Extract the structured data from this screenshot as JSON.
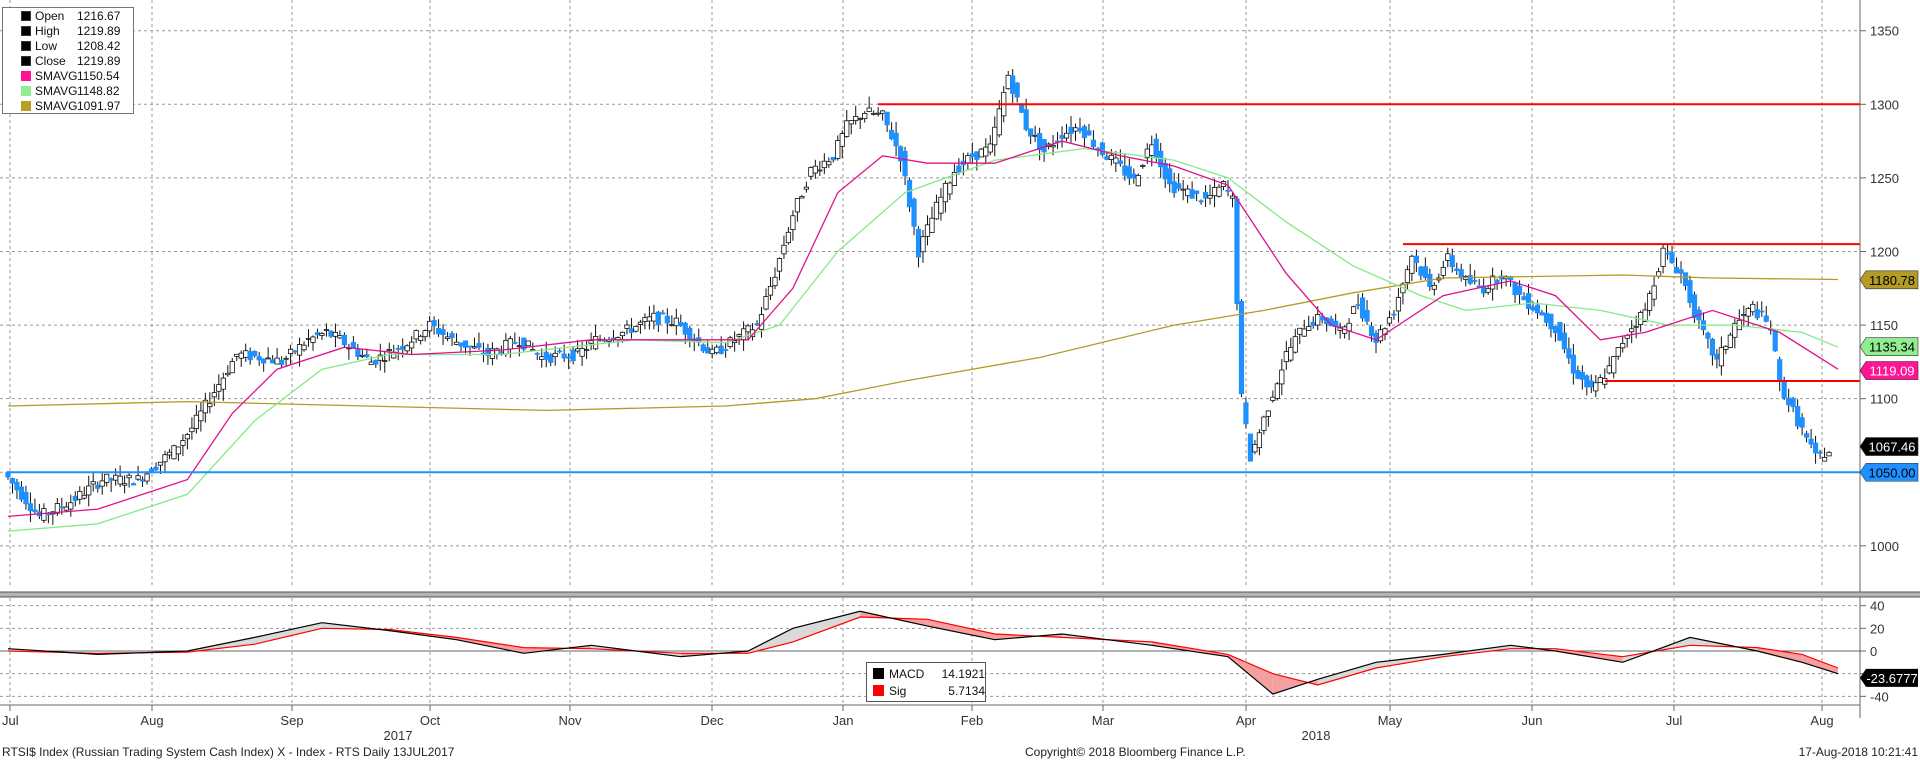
{
  "legend": {
    "rows": [
      {
        "name": "Open",
        "value": "1216.67",
        "color": "#000000"
      },
      {
        "name": "High",
        "value": "1219.89",
        "color": "#000000"
      },
      {
        "name": "Low",
        "value": "1208.42",
        "color": "#000000"
      },
      {
        "name": "Close",
        "value": "1219.89",
        "color": "#000000"
      },
      {
        "name": "SMAVG",
        "value": "1150.54",
        "color": "#ff1493"
      },
      {
        "name": "SMAVG",
        "value": "1148.82",
        "color": "#90ee90"
      },
      {
        "name": "SMAVG",
        "value": "1091.97",
        "color": "#b5a02a"
      }
    ]
  },
  "macd_legend": {
    "rows": [
      {
        "name": "MACD",
        "value": "14.1921",
        "color": "#000000"
      },
      {
        "name": "Sig",
        "value": "5.7134",
        "color": "#ff0000"
      }
    ]
  },
  "footer": {
    "left": "RTSI$ Index (Russian Trading System Cash Index) X - Index - RTS  Daily 13JUL2017",
    "center": "Copyright© 2018 Bloomberg Finance L.P.",
    "right": "17-Aug-2018 10:21:41"
  },
  "chart_data": [
    {
      "type": "candlestick",
      "title": "",
      "x_axis": {
        "months": [
          "Jul",
          "Aug",
          "Sep",
          "Oct",
          "Nov",
          "Dec",
          "Jan",
          "Feb",
          "Mar",
          "Apr",
          "May",
          "Jun",
          "Jul",
          "Aug"
        ],
        "years": [
          "2017",
          "2018"
        ]
      },
      "y_axis": {
        "ticks": [
          1000,
          1050,
          1100,
          1150,
          1200,
          1250,
          1300,
          1350
        ],
        "range": [
          970,
          1360
        ],
        "labeled_ticks": [
          "1000",
          "1100",
          "1150",
          "1200",
          "1250",
          "1300",
          "1350"
        ]
      },
      "grid": true,
      "legend_placement": "top-left",
      "price_path": [
        [
          0,
          1050
        ],
        [
          8,
          1020
        ],
        [
          15,
          1030
        ],
        [
          22,
          1045
        ],
        [
          30,
          1045
        ],
        [
          38,
          1065
        ],
        [
          42,
          1080
        ],
        [
          48,
          1110
        ],
        [
          52,
          1130
        ],
        [
          58,
          1128
        ],
        [
          62,
          1125
        ],
        [
          68,
          1140
        ],
        [
          72,
          1145
        ],
        [
          75,
          1140
        ],
        [
          82,
          1125
        ],
        [
          90,
          1138
        ],
        [
          95,
          1150
        ],
        [
          100,
          1140
        ],
        [
          108,
          1130
        ],
        [
          115,
          1140
        ],
        [
          120,
          1128
        ],
        [
          128,
          1130
        ],
        [
          132,
          1140
        ],
        [
          138,
          1145
        ],
        [
          145,
          1155
        ],
        [
          150,
          1152
        ],
        [
          158,
          1130
        ],
        [
          162,
          1138
        ],
        [
          168,
          1150
        ],
        [
          172,
          1185
        ],
        [
          176,
          1225
        ],
        [
          180,
          1255
        ],
        [
          185,
          1265
        ],
        [
          188,
          1285
        ],
        [
          192,
          1295
        ],
        [
          196,
          1292
        ],
        [
          200,
          1265
        ],
        [
          204,
          1200
        ],
        [
          208,
          1230
        ],
        [
          212,
          1255
        ],
        [
          216,
          1265
        ],
        [
          220,
          1270
        ],
        [
          224,
          1320
        ],
        [
          228,
          1285
        ],
        [
          232,
          1268
        ],
        [
          236,
          1280
        ],
        [
          240,
          1285
        ],
        [
          244,
          1270
        ],
        [
          248,
          1260
        ],
        [
          252,
          1248
        ],
        [
          256,
          1275
        ],
        [
          260,
          1245
        ],
        [
          264,
          1240
        ],
        [
          268,
          1235
        ],
        [
          272,
          1245
        ],
        [
          274,
          1235
        ],
        [
          276,
          1100
        ],
        [
          278,
          1060
        ],
        [
          282,
          1095
        ],
        [
          286,
          1130
        ],
        [
          290,
          1150
        ],
        [
          294,
          1155
        ],
        [
          298,
          1145
        ],
        [
          302,
          1165
        ],
        [
          306,
          1140
        ],
        [
          310,
          1160
        ],
        [
          314,
          1198
        ],
        [
          318,
          1175
        ],
        [
          322,
          1195
        ],
        [
          326,
          1180
        ],
        [
          330,
          1175
        ],
        [
          334,
          1185
        ],
        [
          338,
          1170
        ],
        [
          342,
          1160
        ],
        [
          346,
          1148
        ],
        [
          350,
          1120
        ],
        [
          354,
          1105
        ],
        [
          358,
          1120
        ],
        [
          362,
          1145
        ],
        [
          366,
          1160
        ],
        [
          370,
          1200
        ],
        [
          374,
          1185
        ],
        [
          378,
          1150
        ],
        [
          382,
          1125
        ],
        [
          386,
          1150
        ],
        [
          390,
          1162
        ],
        [
          394,
          1148
        ],
        [
          396,
          1110
        ],
        [
          400,
          1085
        ],
        [
          404,
          1060
        ],
        [
          408,
          1065
        ]
      ],
      "series": [
        {
          "name": "SMAVG",
          "value": "1119.09",
          "color": "#e0108a"
        },
        {
          "name": "SMAVG",
          "value": "1135.34",
          "color": "#86e986"
        },
        {
          "name": "SMAVG",
          "value": "1180.78",
          "color": "#b39b26"
        }
      ],
      "sma_fast": [
        [
          0,
          1020
        ],
        [
          20,
          1025
        ],
        [
          40,
          1045
        ],
        [
          50,
          1090
        ],
        [
          60,
          1120
        ],
        [
          75,
          1135
        ],
        [
          90,
          1130
        ],
        [
          110,
          1133
        ],
        [
          130,
          1140
        ],
        [
          150,
          1140
        ],
        [
          165,
          1140
        ],
        [
          175,
          1175
        ],
        [
          185,
          1240
        ],
        [
          195,
          1265
        ],
        [
          205,
          1260
        ],
        [
          220,
          1260
        ],
        [
          235,
          1275
        ],
        [
          248,
          1265
        ],
        [
          260,
          1258
        ],
        [
          272,
          1245
        ],
        [
          285,
          1185
        ],
        [
          295,
          1150
        ],
        [
          305,
          1140
        ],
        [
          320,
          1170
        ],
        [
          335,
          1180
        ],
        [
          345,
          1170
        ],
        [
          355,
          1140
        ],
        [
          365,
          1145
        ],
        [
          380,
          1160
        ],
        [
          395,
          1145
        ],
        [
          408,
          1120
        ]
      ],
      "sma_mid": [
        [
          0,
          1010
        ],
        [
          20,
          1015
        ],
        [
          40,
          1035
        ],
        [
          55,
          1085
        ],
        [
          70,
          1120
        ],
        [
          85,
          1130
        ],
        [
          110,
          1130
        ],
        [
          140,
          1140
        ],
        [
          160,
          1138
        ],
        [
          172,
          1150
        ],
        [
          185,
          1200
        ],
        [
          200,
          1240
        ],
        [
          220,
          1262
        ],
        [
          240,
          1270
        ],
        [
          260,
          1262
        ],
        [
          272,
          1250
        ],
        [
          285,
          1220
        ],
        [
          300,
          1190
        ],
        [
          315,
          1170
        ],
        [
          325,
          1160
        ],
        [
          340,
          1165
        ],
        [
          355,
          1160
        ],
        [
          370,
          1150
        ],
        [
          385,
          1150
        ],
        [
          400,
          1145
        ],
        [
          408,
          1135
        ]
      ],
      "sma_slow": [
        [
          0,
          1095
        ],
        [
          40,
          1098
        ],
        [
          80,
          1095
        ],
        [
          120,
          1092
        ],
        [
          160,
          1095
        ],
        [
          180,
          1100
        ],
        [
          200,
          1112
        ],
        [
          230,
          1128
        ],
        [
          260,
          1150
        ],
        [
          280,
          1160
        ],
        [
          300,
          1172
        ],
        [
          320,
          1182
        ],
        [
          340,
          1183
        ],
        [
          360,
          1184
        ],
        [
          380,
          1182
        ],
        [
          408,
          1181
        ]
      ],
      "horizontal_lines": [
        {
          "value": 1300,
          "color": "#ff0000",
          "from": 194,
          "to": 408
        },
        {
          "value": 1205,
          "color": "#ff0000",
          "from": 311,
          "to": 408
        },
        {
          "value": 1112,
          "color": "#ff0000",
          "from": 356,
          "to": 408
        },
        {
          "value": 1050,
          "color": "#1e90ff",
          "from": 0,
          "to": 408
        }
      ],
      "price_labels": [
        {
          "value": "1180.78",
          "y": 1180.78,
          "bg": "#b39b26",
          "fg": "#000000"
        },
        {
          "value": "1135.34",
          "y": 1135.34,
          "bg": "#90ee90",
          "fg": "#000000"
        },
        {
          "value": "1119.09",
          "y": 1119.09,
          "bg": "#ff1493",
          "fg": "#ffffff"
        },
        {
          "value": "1067.46",
          "y": 1067.46,
          "bg": "#000000",
          "fg": "#ffffff"
        },
        {
          "value": "1050.00",
          "y": 1050.0,
          "bg": "#1e90ff",
          "fg": "#000000"
        }
      ]
    },
    {
      "type": "line",
      "title": "",
      "y_axis": {
        "ticks": [
          -40,
          -20,
          0,
          20,
          40
        ],
        "range": [
          -45,
          45
        ],
        "labeled_ticks": [
          "-40",
          "-20",
          "0",
          "20",
          "40"
        ]
      },
      "grid": true,
      "series": [
        {
          "name": "MACD",
          "value": "14.1921",
          "color": "#000000",
          "points": [
            [
              0,
              2
            ],
            [
              20,
              -3
            ],
            [
              40,
              0
            ],
            [
              55,
              12
            ],
            [
              70,
              25
            ],
            [
              85,
              18
            ],
            [
              100,
              10
            ],
            [
              115,
              -2
            ],
            [
              130,
              5
            ],
            [
              150,
              -5
            ],
            [
              165,
              0
            ],
            [
              175,
              20
            ],
            [
              190,
              35
            ],
            [
              205,
              22
            ],
            [
              220,
              10
            ],
            [
              235,
              15
            ],
            [
              255,
              5
            ],
            [
              272,
              -5
            ],
            [
              282,
              -38
            ],
            [
              292,
              -25
            ],
            [
              305,
              -10
            ],
            [
              320,
              -3
            ],
            [
              335,
              5
            ],
            [
              345,
              0
            ],
            [
              360,
              -10
            ],
            [
              375,
              12
            ],
            [
              390,
              0
            ],
            [
              400,
              -10
            ],
            [
              408,
              -20
            ]
          ]
        },
        {
          "name": "Sig",
          "value": "5.7134",
          "color": "#ff0000",
          "points": [
            [
              0,
              0
            ],
            [
              20,
              -2
            ],
            [
              40,
              -1
            ],
            [
              55,
              6
            ],
            [
              70,
              20
            ],
            [
              85,
              19
            ],
            [
              100,
              12
            ],
            [
              115,
              3
            ],
            [
              130,
              2
            ],
            [
              150,
              -2
            ],
            [
              165,
              -2
            ],
            [
              175,
              8
            ],
            [
              190,
              30
            ],
            [
              205,
              28
            ],
            [
              220,
              15
            ],
            [
              235,
              12
            ],
            [
              255,
              8
            ],
            [
              272,
              -3
            ],
            [
              282,
              -20
            ],
            [
              292,
              -30
            ],
            [
              305,
              -15
            ],
            [
              320,
              -5
            ],
            [
              335,
              2
            ],
            [
              345,
              2
            ],
            [
              360,
              -5
            ],
            [
              375,
              5
            ],
            [
              390,
              3
            ],
            [
              400,
              -3
            ],
            [
              408,
              -15
            ]
          ]
        }
      ],
      "price_labels": [
        {
          "value": "-23.6777",
          "y": -23.6777,
          "bg": "#000000",
          "fg": "#ffffff"
        }
      ]
    }
  ]
}
